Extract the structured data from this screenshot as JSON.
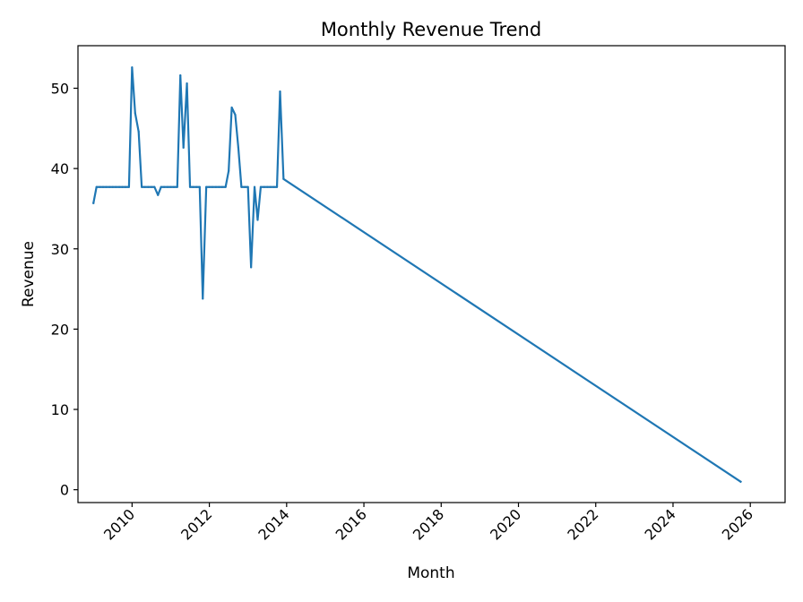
{
  "chart_data": {
    "type": "line",
    "title": "Monthly Revenue Trend",
    "xlabel": "Month",
    "ylabel": "Revenue",
    "xlim": [
      2008.6,
      2026.9
    ],
    "ylim": [
      -1.6,
      55.3
    ],
    "x_ticks": [
      2010,
      2012,
      2014,
      2016,
      2018,
      2020,
      2022,
      2024,
      2026
    ],
    "x_tick_labels": [
      "2010",
      "2012",
      "2014",
      "2016",
      "2018",
      "2020",
      "2022",
      "2024",
      "2026"
    ],
    "y_ticks": [
      0,
      10,
      20,
      30,
      40,
      50
    ],
    "y_tick_labels": [
      "0",
      "10",
      "20",
      "30",
      "40",
      "50"
    ],
    "grid": false,
    "series": [
      {
        "name": "Revenue",
        "color": "#1f77b4",
        "x": [
          2009.0,
          2009.08,
          2009.17,
          2009.25,
          2009.33,
          2009.42,
          2009.5,
          2009.58,
          2009.67,
          2009.75,
          2009.83,
          2009.92,
          2010.0,
          2010.08,
          2010.17,
          2010.25,
          2010.33,
          2010.42,
          2010.5,
          2010.58,
          2010.67,
          2010.75,
          2010.83,
          2010.92,
          2011.0,
          2011.08,
          2011.17,
          2011.25,
          2011.33,
          2011.42,
          2011.5,
          2011.58,
          2011.67,
          2011.75,
          2011.83,
          2011.92,
          2012.0,
          2012.08,
          2012.17,
          2012.25,
          2012.33,
          2012.42,
          2012.5,
          2012.58,
          2012.67,
          2012.75,
          2012.83,
          2012.92,
          2013.0,
          2013.08,
          2013.17,
          2013.25,
          2013.33,
          2013.42,
          2013.5,
          2013.58,
          2013.67,
          2013.75,
          2013.83,
          2013.92,
          2025.75
        ],
        "values": [
          35.7,
          37.7,
          37.7,
          37.7,
          37.7,
          37.7,
          37.7,
          37.7,
          37.7,
          37.7,
          37.7,
          37.7,
          52.6,
          46.9,
          44.6,
          37.7,
          37.7,
          37.7,
          37.7,
          37.7,
          36.7,
          37.7,
          37.7,
          37.7,
          37.7,
          37.7,
          37.7,
          51.6,
          42.6,
          50.6,
          37.7,
          37.7,
          37.7,
          37.7,
          23.8,
          37.7,
          37.7,
          37.7,
          37.7,
          37.7,
          37.7,
          37.7,
          39.7,
          47.6,
          46.7,
          42.6,
          37.7,
          37.7,
          37.7,
          27.7,
          37.7,
          33.6,
          37.7,
          37.7,
          37.7,
          37.7,
          37.7,
          37.7,
          49.6,
          38.7,
          1.0
        ]
      }
    ]
  }
}
